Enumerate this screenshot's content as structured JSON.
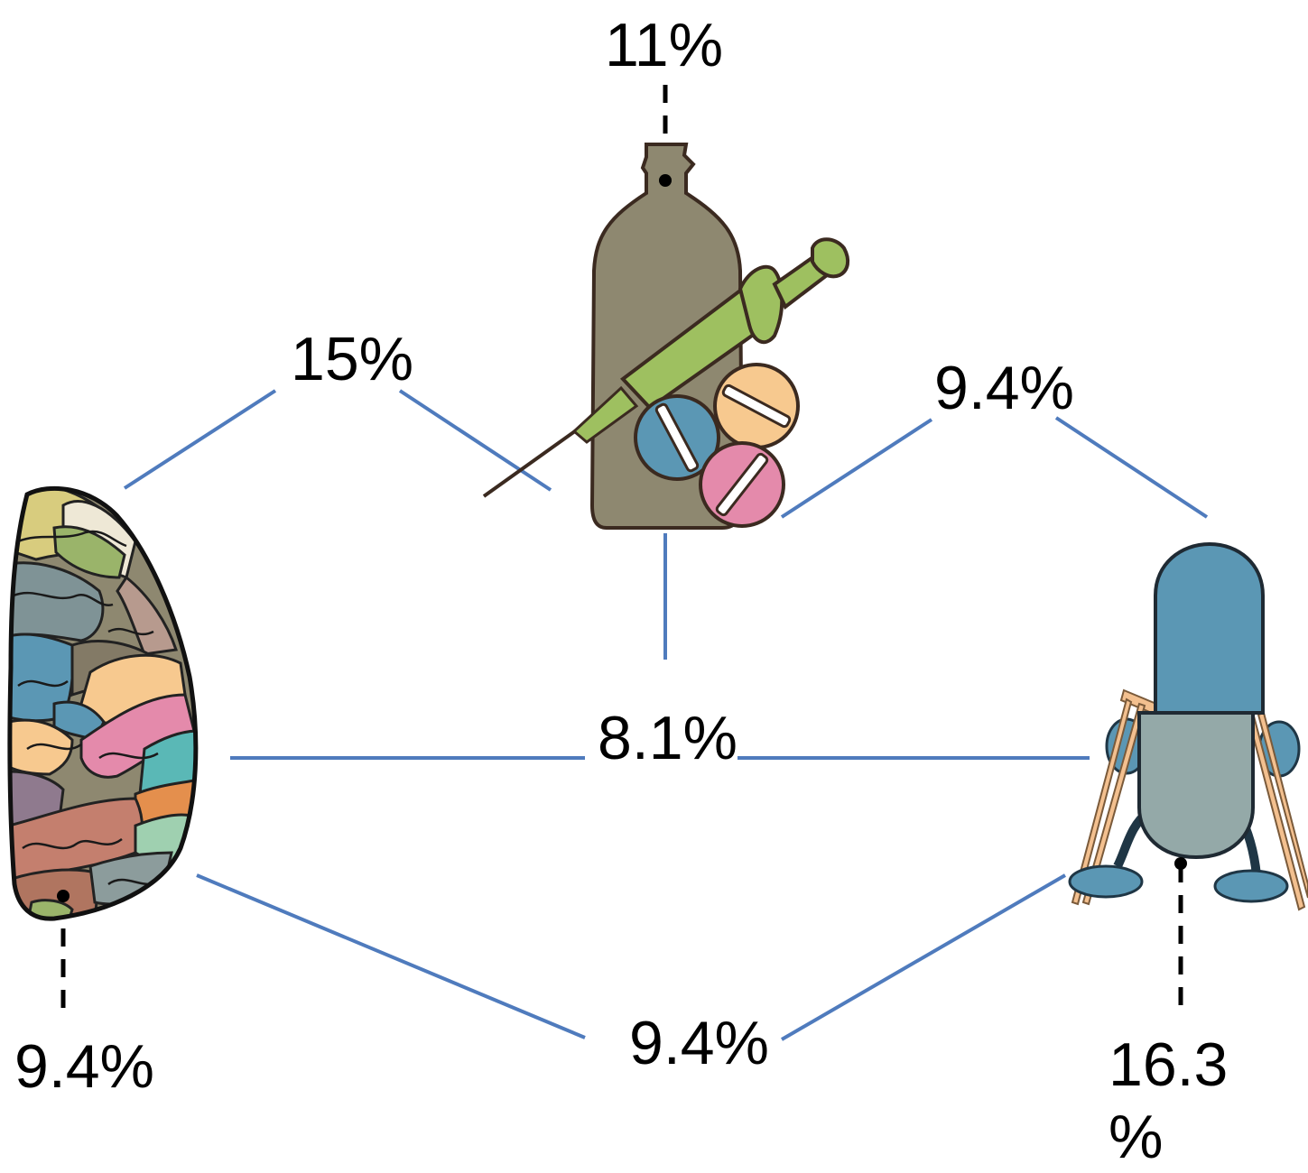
{
  "labels": {
    "substance_use": "11%",
    "neuro_substance": "15%",
    "substance_physical": "9.4%",
    "neuro_physical_center": "8.1%",
    "neuro_physical_bottom": "9.4%",
    "neuro": "9.4%",
    "physical_line1": "16.3",
    "physical_line2": "%"
  },
  "icons": {
    "brain": "brain-icon",
    "substances": "bottle-syringe-pills-icon",
    "physical": "capsule-with-crutches-icon"
  },
  "colors": {
    "connector": "#4f7bbd",
    "bottle": "#8e8870",
    "syringe": "#9ec060",
    "pill_blue": "#5b97b4",
    "pill_orange": "#f7c98f",
    "pill_pink": "#e48aab",
    "capsule_top": "#5b97b4",
    "capsule_bottom": "#94a9a8",
    "crutch": "#f3c08f"
  }
}
